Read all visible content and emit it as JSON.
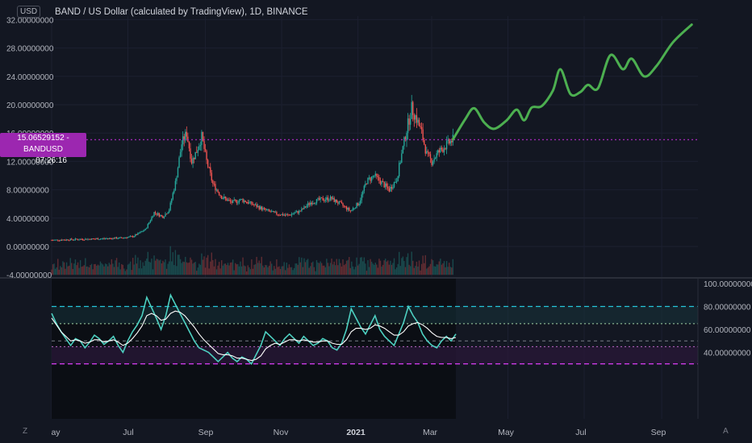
{
  "header": {
    "title": "BAND / US Dollar (calculated by TradingView), 1D, BINANCE",
    "unit": "USD"
  },
  "price_tag": {
    "value": "15.06529152",
    "symbol": "BANDUSD",
    "countdown": "07:26:16"
  },
  "corners": {
    "left": "Z",
    "right": "A"
  },
  "colors": {
    "background": "#131722",
    "candle_up": "#26a69a",
    "candle_down": "#ef5350",
    "projection": "#4caf50",
    "current_price_line": "#9c27b0",
    "rsi_line": "#4dd0c1",
    "rsi_signal": "#ffffff",
    "rsi_upper_band": "#26c6da",
    "rsi_lower_band": "#e040fb"
  },
  "chart_data": [
    {
      "type": "candlestick",
      "title": "BAND / US Dollar (calculated by TradingView), 1D, BINANCE",
      "ylim": [
        -4,
        32
      ],
      "y_ticks": [
        "32.00000000",
        "28.00000000",
        "24.00000000",
        "20.00000000",
        "16.00000000",
        "12.00000000",
        "8.00000000",
        "4.00000000",
        "0.00000000",
        "-4.00000000"
      ],
      "x_ticks": [
        "ay",
        "Jul",
        "Sep",
        "Nov",
        "2021",
        "Mar",
        "May",
        "Jul",
        "Sep"
      ],
      "current_price": 15.06529152,
      "price_path": [
        [
          "2020-05-01",
          0.9
        ],
        [
          "2020-05-20",
          1.0
        ],
        [
          "2020-06-10",
          1.1
        ],
        [
          "2020-06-25",
          1.2
        ],
        [
          "2020-07-05",
          1.4
        ],
        [
          "2020-07-15",
          2.4
        ],
        [
          "2020-07-22",
          4.8
        ],
        [
          "2020-07-29",
          4.2
        ],
        [
          "2020-08-03",
          5.2
        ],
        [
          "2020-08-08",
          9.0
        ],
        [
          "2020-08-13",
          14.5
        ],
        [
          "2020-08-17",
          16.0
        ],
        [
          "2020-08-21",
          12.0
        ],
        [
          "2020-08-25",
          13.5
        ],
        [
          "2020-08-29",
          15.5
        ],
        [
          "2020-09-02",
          12.0
        ],
        [
          "2020-09-07",
          8.8
        ],
        [
          "2020-09-14",
          7.0
        ],
        [
          "2020-09-22",
          6.2
        ],
        [
          "2020-09-30",
          6.6
        ],
        [
          "2020-10-08",
          6.0
        ],
        [
          "2020-10-18",
          5.2
        ],
        [
          "2020-10-28",
          4.6
        ],
        [
          "2020-11-06",
          4.4
        ],
        [
          "2020-11-16",
          5.0
        ],
        [
          "2020-11-24",
          6.2
        ],
        [
          "2020-12-02",
          6.6
        ],
        [
          "2020-12-10",
          6.8
        ],
        [
          "2020-12-18",
          6.0
        ],
        [
          "2020-12-26",
          5.0
        ],
        [
          "2021-01-02",
          6.2
        ],
        [
          "2021-01-08",
          9.2
        ],
        [
          "2021-01-14",
          10.0
        ],
        [
          "2021-01-20",
          9.0
        ],
        [
          "2021-01-26",
          8.0
        ],
        [
          "2021-02-01",
          9.5
        ],
        [
          "2021-02-05",
          13.0
        ],
        [
          "2021-02-09",
          16.5
        ],
        [
          "2021-02-13",
          19.5
        ],
        [
          "2021-02-17",
          18.0
        ],
        [
          "2021-02-21",
          16.0
        ],
        [
          "2021-02-25",
          13.0
        ],
        [
          "2021-03-01",
          12.0
        ],
        [
          "2021-03-06",
          13.2
        ],
        [
          "2021-03-12",
          14.2
        ],
        [
          "2021-03-18",
          15.06
        ]
      ],
      "projection": [
        [
          "2021-03-18",
          15.1
        ],
        [
          "2021-03-28",
          18.0
        ],
        [
          "2021-04-04",
          19.5
        ],
        [
          "2021-04-12",
          17.5
        ],
        [
          "2021-04-20",
          16.6
        ],
        [
          "2021-04-30",
          17.8
        ],
        [
          "2021-05-08",
          19.3
        ],
        [
          "2021-05-14",
          17.8
        ],
        [
          "2021-05-20",
          19.6
        ],
        [
          "2021-05-28",
          19.8
        ],
        [
          "2021-06-06",
          22.0
        ],
        [
          "2021-06-12",
          25.0
        ],
        [
          "2021-06-20",
          21.5
        ],
        [
          "2021-06-28",
          21.8
        ],
        [
          "2021-07-04",
          22.8
        ],
        [
          "2021-07-12",
          22.3
        ],
        [
          "2021-07-22",
          27.0
        ],
        [
          "2021-08-01",
          25.0
        ],
        [
          "2021-08-08",
          26.5
        ],
        [
          "2021-08-18",
          24.0
        ],
        [
          "2021-08-28",
          25.5
        ],
        [
          "2021-09-10",
          28.8
        ],
        [
          "2021-09-25",
          31.3
        ]
      ],
      "volume_bars": true
    },
    {
      "type": "line",
      "indicator": "oscillator",
      "ylim": [
        20,
        100
      ],
      "y_ticks": [
        "100.00000000",
        "80.00000000",
        "60.00000000",
        "40.00000000"
      ],
      "bands": {
        "upper": 80,
        "upper_mid": 65,
        "middle": 50,
        "lower_mid": 45,
        "lower": 30
      },
      "series": [
        {
          "values": [
            74,
            65,
            58,
            52,
            46,
            52,
            50,
            44,
            49,
            55,
            52,
            47,
            50,
            54,
            46,
            40,
            50,
            58,
            64,
            72,
            88,
            79,
            70,
            60,
            72,
            90,
            82,
            74,
            66,
            58,
            50,
            44,
            42,
            40,
            36,
            32,
            36,
            40,
            35,
            32,
            36,
            34,
            30,
            38,
            46,
            58,
            54,
            50,
            46,
            52,
            56,
            52,
            48,
            54,
            50,
            46,
            48,
            52,
            50,
            44,
            42,
            48,
            60,
            78,
            70,
            62,
            56,
            64,
            72,
            60,
            54,
            50,
            46,
            56,
            66,
            80,
            72,
            66,
            56,
            50,
            46,
            44,
            50,
            54,
            50,
            56
          ]
        },
        {
          "values": [
            70,
            64,
            58,
            54,
            50,
            51,
            50,
            48,
            49,
            51,
            51,
            49,
            50,
            51,
            49,
            46,
            48,
            52,
            57,
            63,
            72,
            74,
            72,
            68,
            69,
            74,
            76,
            75,
            72,
            67,
            62,
            56,
            51,
            47,
            43,
            39,
            38,
            38,
            37,
            35,
            35,
            34,
            33,
            34,
            37,
            43,
            46,
            48,
            47,
            49,
            51,
            51,
            50,
            51,
            50,
            49,
            49,
            50,
            50,
            48,
            47,
            47,
            51,
            58,
            61,
            61,
            60,
            61,
            64,
            63,
            61,
            58,
            55,
            55,
            58,
            63,
            65,
            66,
            64,
            61,
            57,
            54,
            53,
            53,
            52,
            53
          ]
        }
      ]
    }
  ]
}
